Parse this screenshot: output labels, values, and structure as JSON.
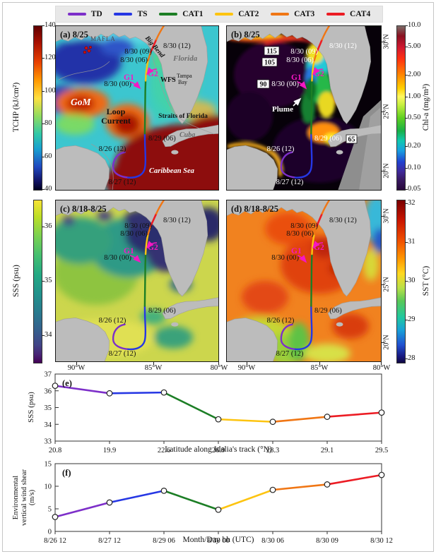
{
  "colors": {
    "land": "#bcbcbc",
    "panel_border": "#1a1a1a",
    "magenta": "#f517c3",
    "sea_a": "#3cc6cf",
    "sea_b": "#070109",
    "sea_c": "#ccd64d",
    "sea_d": "#f1821f"
  },
  "legend": {
    "items": [
      {
        "label": "TD",
        "color": "#7d2fc9"
      },
      {
        "label": "TS",
        "color": "#2637e4"
      },
      {
        "label": "CAT1",
        "color": "#1c7e25"
      },
      {
        "label": "CAT2",
        "color": "#fdc410"
      },
      {
        "label": "CAT3",
        "color": "#f07614"
      },
      {
        "label": "CAT4",
        "color": "#ec1c24"
      }
    ]
  },
  "panels": {
    "a": {
      "title": "(a) 8/25",
      "labels": {
        "mafla": "MAFLA",
        "big_bend": "Big Bend",
        "florida": "Florida",
        "tampa": "Tampa",
        "bay": "Bay",
        "tampa_arrow": "←",
        "wfs": "WFS",
        "gom": "GoM",
        "loop1": "Loop",
        "loop2": "Current",
        "straits": "Straits of Florida",
        "cuba": "Cuba",
        "caribbean": "Caribbean Sea"
      }
    },
    "b": {
      "title": "(b) 8/25",
      "plume": "Plume",
      "boxes": {
        "v115": "115",
        "v105": "105",
        "v90": "90",
        "v65": "65"
      }
    },
    "c": {
      "title": "(c) 8/18-8/25"
    },
    "d": {
      "title": "(d) 8/18-8/25"
    }
  },
  "track": {
    "labels": {
      "t3012": "8/30 (12)",
      "t3009": "8/30 (09)",
      "t3006": "8/30 (06)",
      "t3000": "8/30 (00)",
      "t2906": "8/29 (06)",
      "t2612": "8/26 (12)",
      "t2712": "8/27 (12)",
      "g1": "G1",
      "g2": "G2"
    }
  },
  "colorbars": {
    "a": {
      "unit": "TCHP (kJ/cm²)",
      "scale": "linear",
      "range": [
        40,
        140
      ],
      "ticks": [
        {
          "v": 140,
          "label": "140"
        },
        {
          "v": 120,
          "label": "120"
        },
        {
          "v": 100,
          "label": "100"
        },
        {
          "v": 80,
          "label": "80"
        },
        {
          "v": 60,
          "label": "60"
        },
        {
          "v": 40,
          "label": "40"
        }
      ]
    },
    "b": {
      "unit": "Chl-a (mg/m³)",
      "scale": "log",
      "range": [
        0.05,
        10
      ],
      "ticks": [
        {
          "v": 10,
          "label": "10.0"
        },
        {
          "v": 5,
          "label": "5.00"
        },
        {
          "v": 2,
          "label": "2.00"
        },
        {
          "v": 1,
          "label": "1.00"
        },
        {
          "v": 0.5,
          "label": "0.50"
        },
        {
          "v": 0.2,
          "label": "0.20"
        },
        {
          "v": 0.1,
          "label": "0.10"
        },
        {
          "v": 0.05,
          "label": "0.05"
        }
      ]
    },
    "c": {
      "unit": "SSS (psu)",
      "scale": "linear",
      "range": [
        33.5,
        36.5
      ],
      "ticks": [
        {
          "v": 36,
          "label": "36"
        },
        {
          "v": 35,
          "label": "35"
        },
        {
          "v": 34,
          "label": "34"
        }
      ]
    },
    "d": {
      "unit": "SST (°C)",
      "scale": "linear",
      "range": [
        27.9,
        32.1
      ],
      "ticks": [
        {
          "v": 32,
          "label": "32"
        },
        {
          "v": 31,
          "label": "31"
        },
        {
          "v": 30,
          "label": "30"
        },
        {
          "v": 29,
          "label": "29"
        },
        {
          "v": 28,
          "label": "28"
        }
      ]
    }
  },
  "axes": {
    "lon_ticks": [
      "90°W",
      "85°W",
      "80°W"
    ],
    "lat_ticks": [
      "30°N",
      "25°N",
      "20°N"
    ]
  },
  "chart_data": [
    {
      "id": "chart-e",
      "type": "line",
      "panel_label": "(e)",
      "x_categories": [
        "20.8",
        "19.9",
        "22.6",
        "26.9",
        "28.3",
        "29.1",
        "29.5"
      ],
      "values": [
        36.3,
        35.85,
        35.9,
        34.3,
        34.15,
        34.45,
        34.7
      ],
      "segment_statuses": [
        "TD",
        "TS",
        "CAT1",
        "CAT2",
        "CAT3",
        "CAT4"
      ],
      "ylim": [
        33,
        37
      ],
      "yticks": [
        "33",
        "34",
        "35",
        "36",
        "37"
      ],
      "xlabel": "Latitude along Idalia's track (°N)",
      "ylabel": "SSS (psu)",
      "legend_position": "none",
      "grid": false
    },
    {
      "id": "chart-f",
      "type": "line",
      "panel_label": "(f)",
      "x_categories": [
        "8/26 12",
        "8/27 12",
        "8/29 06",
        "8/30 00",
        "8/30 06",
        "8/30 09",
        "8/30 12"
      ],
      "values": [
        3.2,
        6.4,
        9.0,
        4.8,
        9.2,
        10.4,
        12.5
      ],
      "segment_statuses": [
        "TD",
        "TS",
        "CAT1",
        "CAT2",
        "CAT3",
        "CAT4"
      ],
      "ylim": [
        0,
        15
      ],
      "yticks": [
        "0",
        "5",
        "10",
        "15"
      ],
      "xlabel": "Month/Day hh (UTC)",
      "ylabel_lines": [
        "Environmental",
        "vertical wind shear",
        "(m/s)"
      ],
      "ylabel": "Environmental vertical wind shear (m/s)",
      "legend_position": "none",
      "grid": false
    }
  ]
}
